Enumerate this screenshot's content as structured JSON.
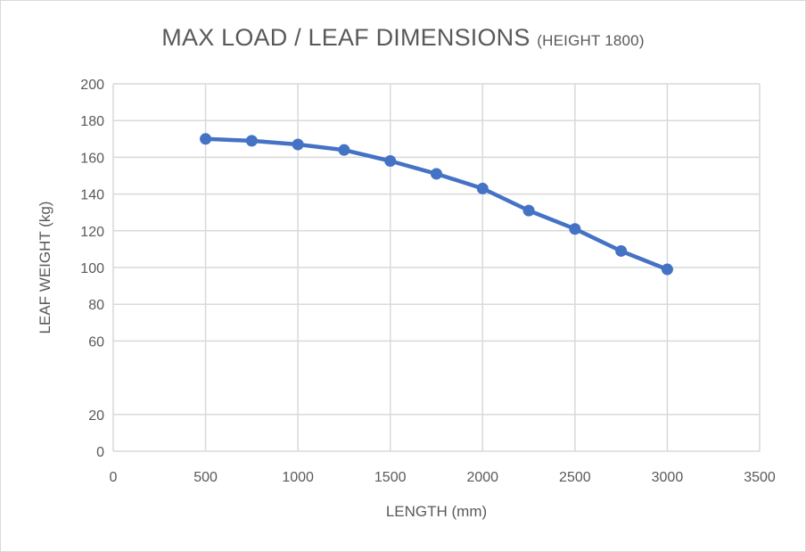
{
  "chart_data": {
    "type": "line",
    "title": "MAX LOAD / LEAF DIMENSIONS",
    "subtitle": "(HEIGHT 1800)",
    "xlabel": "LENGTH (mm)",
    "ylabel": "LEAF WEIGHT (kg)",
    "xlim": [
      0,
      3500
    ],
    "ylim": [
      0,
      200
    ],
    "xticks": [
      0,
      500,
      1000,
      1500,
      2000,
      2500,
      3000,
      3500
    ],
    "yticks": [
      0,
      20,
      60,
      80,
      100,
      120,
      140,
      160,
      180,
      200
    ],
    "grid": true,
    "legend": "none",
    "series_color": "#4472c4",
    "series": [
      {
        "x": [
          500,
          750,
          1000,
          1250,
          1500,
          1750,
          2000,
          2250,
          2500,
          2750,
          3000
        ],
        "y": [
          170,
          169,
          167,
          164,
          158,
          151,
          143,
          131,
          121,
          109,
          99
        ]
      }
    ]
  }
}
